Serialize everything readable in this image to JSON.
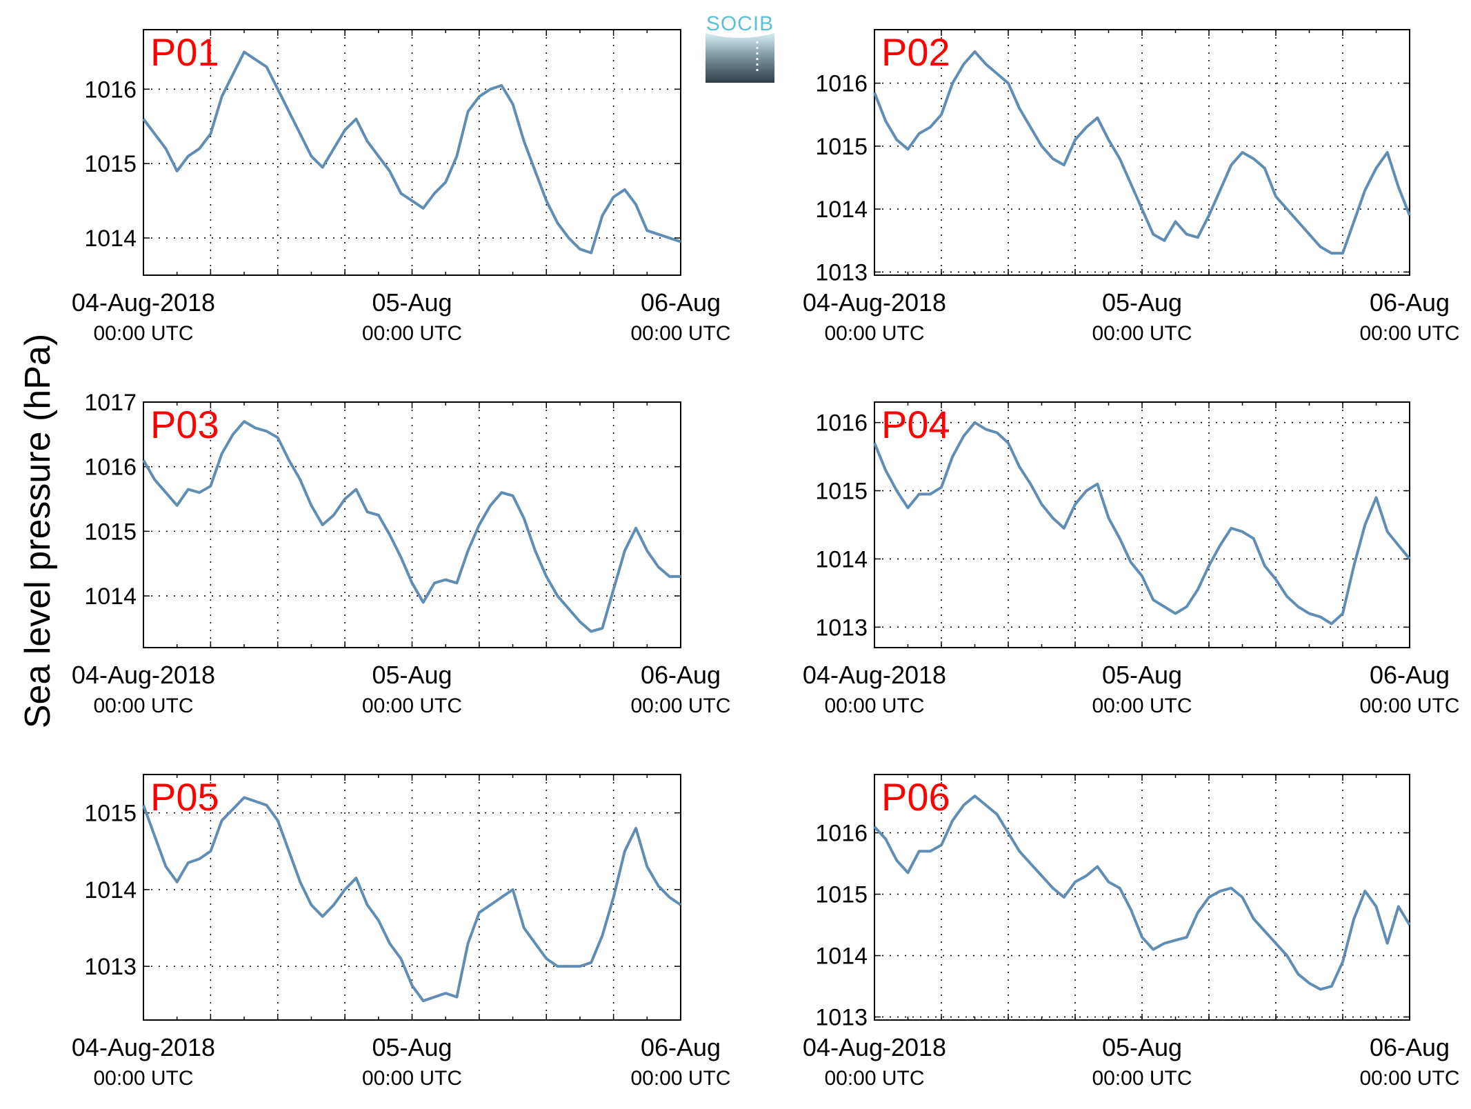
{
  "figure": {
    "ylabel": "Sea level pressure (hPa)",
    "logo_text": "SOCIB"
  },
  "colors": {
    "line": "#5f8db4",
    "panel_label": "#ff0000",
    "axis": "#000000",
    "logo_top": "#5bc0d3",
    "logo_bottom": "#2f3f4a"
  },
  "x_ticks": [
    {
      "line1": "04-Aug-2018",
      "line2": "00:00 UTC"
    },
    {
      "line1": "05-Aug",
      "line2": "00:00 UTC"
    },
    {
      "line1": "06-Aug",
      "line2": "00:00 UTC"
    }
  ],
  "chart_data": [
    {
      "type": "line",
      "label": "P01",
      "xlim": [
        0,
        48
      ],
      "ylim": [
        1013.5,
        1016.8
      ],
      "yticks": [
        1014,
        1015,
        1016
      ],
      "grid": true,
      "x": [
        0,
        1,
        2,
        3,
        4,
        5,
        6,
        7,
        8,
        9,
        10,
        11,
        12,
        13,
        14,
        15,
        16,
        17,
        18,
        19,
        20,
        21,
        22,
        23,
        24,
        25,
        26,
        27,
        28,
        29,
        30,
        31,
        32,
        33,
        34,
        35,
        36,
        37,
        38,
        39,
        40,
        41,
        42,
        43,
        44,
        45,
        46,
        47,
        48
      ],
      "y": [
        1015.6,
        1015.4,
        1015.2,
        1014.9,
        1015.1,
        1015.2,
        1015.4,
        1015.9,
        1016.2,
        1016.5,
        1016.4,
        1016.3,
        1016.0,
        1015.7,
        1015.4,
        1015.1,
        1014.95,
        1015.2,
        1015.45,
        1015.6,
        1015.3,
        1015.1,
        1014.9,
        1014.6,
        1014.5,
        1014.4,
        1014.6,
        1014.75,
        1015.1,
        1015.7,
        1015.9,
        1016.0,
        1016.05,
        1015.8,
        1015.3,
        1014.9,
        1014.5,
        1014.2,
        1014.0,
        1013.85,
        1013.8,
        1014.3,
        1014.55,
        1014.65,
        1014.45,
        1014.1,
        1014.05,
        1014.0,
        1013.95
      ]
    },
    {
      "type": "line",
      "label": "P02",
      "xlim": [
        0,
        48
      ],
      "ylim": [
        1012.95,
        1016.85
      ],
      "yticks": [
        1013,
        1014,
        1015,
        1016
      ],
      "grid": true,
      "x": [
        0,
        1,
        2,
        3,
        4,
        5,
        6,
        7,
        8,
        9,
        10,
        11,
        12,
        13,
        14,
        15,
        16,
        17,
        18,
        19,
        20,
        21,
        22,
        23,
        24,
        25,
        26,
        27,
        28,
        29,
        30,
        31,
        32,
        33,
        34,
        35,
        36,
        37,
        38,
        39,
        40,
        41,
        42,
        43,
        44,
        45,
        46,
        47,
        48
      ],
      "y": [
        1015.85,
        1015.4,
        1015.1,
        1014.95,
        1015.2,
        1015.3,
        1015.5,
        1016.0,
        1016.3,
        1016.5,
        1016.3,
        1016.15,
        1016.0,
        1015.6,
        1015.3,
        1015.0,
        1014.8,
        1014.7,
        1015.1,
        1015.3,
        1015.45,
        1015.1,
        1014.8,
        1014.4,
        1014.0,
        1013.6,
        1013.5,
        1013.8,
        1013.6,
        1013.55,
        1013.9,
        1014.3,
        1014.7,
        1014.9,
        1014.8,
        1014.65,
        1014.2,
        1014.0,
        1013.8,
        1013.6,
        1013.4,
        1013.3,
        1013.3,
        1013.8,
        1014.3,
        1014.65,
        1014.9,
        1014.35,
        1013.9
      ]
    },
    {
      "type": "line",
      "label": "P03",
      "xlim": [
        0,
        48
      ],
      "ylim": [
        1013.2,
        1017.0
      ],
      "yticks": [
        1014,
        1015,
        1016,
        1017
      ],
      "grid": true,
      "x": [
        0,
        1,
        2,
        3,
        4,
        5,
        6,
        7,
        8,
        9,
        10,
        11,
        12,
        13,
        14,
        15,
        16,
        17,
        18,
        19,
        20,
        21,
        22,
        23,
        24,
        25,
        26,
        27,
        28,
        29,
        30,
        31,
        32,
        33,
        34,
        35,
        36,
        37,
        38,
        39,
        40,
        41,
        42,
        43,
        44,
        45,
        46,
        47,
        48
      ],
      "y": [
        1016.1,
        1015.8,
        1015.6,
        1015.4,
        1015.65,
        1015.6,
        1015.7,
        1016.2,
        1016.5,
        1016.7,
        1016.6,
        1016.55,
        1016.45,
        1016.1,
        1015.8,
        1015.4,
        1015.1,
        1015.25,
        1015.5,
        1015.65,
        1015.3,
        1015.25,
        1014.95,
        1014.6,
        1014.2,
        1013.9,
        1014.2,
        1014.25,
        1014.2,
        1014.7,
        1015.1,
        1015.4,
        1015.6,
        1015.55,
        1015.2,
        1014.7,
        1014.3,
        1014.0,
        1013.8,
        1013.6,
        1013.45,
        1013.5,
        1014.1,
        1014.7,
        1015.05,
        1014.7,
        1014.45,
        1014.3,
        1014.3
      ]
    },
    {
      "type": "line",
      "label": "P04",
      "xlim": [
        0,
        48
      ],
      "ylim": [
        1012.7,
        1016.3
      ],
      "yticks": [
        1013,
        1014,
        1015,
        1016
      ],
      "grid": true,
      "x": [
        0,
        1,
        2,
        3,
        4,
        5,
        6,
        7,
        8,
        9,
        10,
        11,
        12,
        13,
        14,
        15,
        16,
        17,
        18,
        19,
        20,
        21,
        22,
        23,
        24,
        25,
        26,
        27,
        28,
        29,
        30,
        31,
        32,
        33,
        34,
        35,
        36,
        37,
        38,
        39,
        40,
        41,
        42,
        43,
        44,
        45,
        46,
        47,
        48
      ],
      "y": [
        1015.7,
        1015.3,
        1015.0,
        1014.75,
        1014.95,
        1014.95,
        1015.05,
        1015.5,
        1015.8,
        1016.0,
        1015.9,
        1015.85,
        1015.7,
        1015.35,
        1015.1,
        1014.8,
        1014.6,
        1014.45,
        1014.8,
        1015.0,
        1015.1,
        1014.6,
        1014.3,
        1013.95,
        1013.75,
        1013.4,
        1013.3,
        1013.2,
        1013.3,
        1013.55,
        1013.9,
        1014.2,
        1014.45,
        1014.4,
        1014.3,
        1013.9,
        1013.7,
        1013.45,
        1013.3,
        1013.2,
        1013.15,
        1013.05,
        1013.2,
        1013.9,
        1014.5,
        1014.9,
        1014.4,
        1014.2,
        1014.0
      ]
    },
    {
      "type": "line",
      "label": "P05",
      "xlim": [
        0,
        48
      ],
      "ylim": [
        1012.3,
        1015.5
      ],
      "yticks": [
        1013,
        1014,
        1015
      ],
      "grid": true,
      "x": [
        0,
        1,
        2,
        3,
        4,
        5,
        6,
        7,
        8,
        9,
        10,
        11,
        12,
        13,
        14,
        15,
        16,
        17,
        18,
        19,
        20,
        21,
        22,
        23,
        24,
        25,
        26,
        27,
        28,
        29,
        30,
        31,
        32,
        33,
        34,
        35,
        36,
        37,
        38,
        39,
        40,
        41,
        42,
        43,
        44,
        45,
        46,
        47,
        48
      ],
      "y": [
        1015.1,
        1014.7,
        1014.3,
        1014.1,
        1014.35,
        1014.4,
        1014.5,
        1014.9,
        1015.05,
        1015.2,
        1015.15,
        1015.1,
        1014.9,
        1014.5,
        1014.1,
        1013.8,
        1013.65,
        1013.8,
        1014.0,
        1014.15,
        1013.8,
        1013.6,
        1013.3,
        1013.1,
        1012.75,
        1012.55,
        1012.6,
        1012.65,
        1012.6,
        1013.3,
        1013.7,
        1013.8,
        1013.9,
        1014.0,
        1013.5,
        1013.3,
        1013.1,
        1013.0,
        1013.0,
        1013.0,
        1013.05,
        1013.4,
        1013.9,
        1014.5,
        1014.8,
        1014.3,
        1014.05,
        1013.9,
        1013.8
      ]
    },
    {
      "type": "line",
      "label": "P06",
      "xlim": [
        0,
        48
      ],
      "ylim": [
        1012.95,
        1016.95
      ],
      "yticks": [
        1013,
        1014,
        1015,
        1016
      ],
      "grid": true,
      "x": [
        0,
        1,
        2,
        3,
        4,
        5,
        6,
        7,
        8,
        9,
        10,
        11,
        12,
        13,
        14,
        15,
        16,
        17,
        18,
        19,
        20,
        21,
        22,
        23,
        24,
        25,
        26,
        27,
        28,
        29,
        30,
        31,
        32,
        33,
        34,
        35,
        36,
        37,
        38,
        39,
        40,
        41,
        42,
        43,
        44,
        45,
        46,
        47,
        48
      ],
      "y": [
        1016.1,
        1015.9,
        1015.55,
        1015.35,
        1015.7,
        1015.7,
        1015.8,
        1016.2,
        1016.45,
        1016.6,
        1016.45,
        1016.3,
        1016.0,
        1015.7,
        1015.5,
        1015.3,
        1015.1,
        1014.95,
        1015.2,
        1015.3,
        1015.45,
        1015.2,
        1015.1,
        1014.75,
        1014.3,
        1014.1,
        1014.2,
        1014.25,
        1014.3,
        1014.7,
        1014.95,
        1015.05,
        1015.1,
        1014.95,
        1014.6,
        1014.4,
        1014.2,
        1014.0,
        1013.7,
        1013.55,
        1013.45,
        1013.5,
        1013.9,
        1014.6,
        1015.05,
        1014.8,
        1014.2,
        1014.8,
        1014.5
      ]
    }
  ]
}
